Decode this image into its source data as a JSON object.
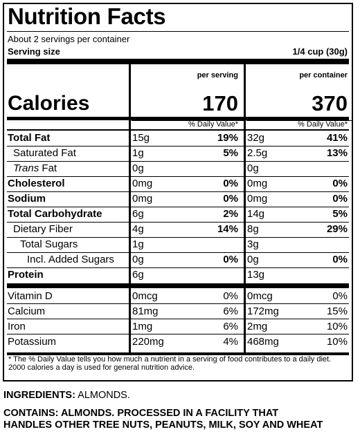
{
  "title": "Nutrition Facts",
  "servings_per_container": "About 2 servings per container",
  "serving_size_label": "Serving size",
  "serving_size_value": "1/4 cup (30g)",
  "col_per_serving": "per serving",
  "col_per_container": "per container",
  "calories_label": "Calories",
  "calories_serving": "170",
  "calories_container": "370",
  "dv_heading": "% Daily Value*",
  "nutrients": [
    {
      "name": "Total Fat",
      "bold": true,
      "amt1": "15g",
      "dv1": "19%",
      "amt2": "32g",
      "dv2": "41%"
    },
    {
      "name": "Saturated Fat",
      "bold": false,
      "amt1": "1g",
      "dv1": "5%",
      "amt2": "2.5g",
      "dv2": "13%"
    },
    {
      "name_italic": "Trans",
      "name": " Fat",
      "bold": false,
      "amt1": "0g",
      "dv1": "",
      "amt2": "0g",
      "dv2": ""
    },
    {
      "name": "Cholesterol",
      "bold": true,
      "amt1": "0mg",
      "dv1": "0%",
      "amt2": "0mg",
      "dv2": "0%"
    },
    {
      "name": "Sodium",
      "bold": true,
      "amt1": "0mg",
      "dv1": "0%",
      "amt2": "0mg",
      "dv2": "0%"
    },
    {
      "name": "Total Carbohydrate",
      "bold": true,
      "amt1": "6g",
      "dv1": "2%",
      "amt2": "14g",
      "dv2": "5%"
    },
    {
      "name": "Dietary Fiber",
      "bold": false,
      "amt1": "4g",
      "dv1": "14%",
      "amt2": "8g",
      "dv2": "29%"
    },
    {
      "name": "Total Sugars",
      "bold": false,
      "amt1": "1g",
      "dv1": "",
      "amt2": "3g",
      "dv2": ""
    },
    {
      "name": "Incl. Added Sugars",
      "bold": false,
      "amt1": "0g",
      "dv1": "0%",
      "amt2": "0g",
      "dv2": "0%"
    },
    {
      "name": "Protein",
      "bold": true,
      "amt1": "6g",
      "dv1": "",
      "amt2": "13g",
      "dv2": ""
    }
  ],
  "micronutrients": [
    {
      "name": "Vitamin D",
      "amt1": "0mcg",
      "dv1": "0%",
      "amt2": "0mcg",
      "dv2": "0%"
    },
    {
      "name": "Calcium",
      "amt1": "81mg",
      "dv1": "6%",
      "amt2": "172mg",
      "dv2": "15%"
    },
    {
      "name": "Iron",
      "amt1": "1mg",
      "dv1": "6%",
      "amt2": "2mg",
      "dv2": "10%"
    },
    {
      "name": "Potassium",
      "amt1": "220mg",
      "dv1": "4%",
      "amt2": "468mg",
      "dv2": "10%"
    }
  ],
  "footnote": "* The % Daily Value tells you how much a nutrient in a serving of food contributes to a daily diet. 2000 calories a day is used for general nutrition advice.",
  "ingredients_label": "INGREDIENTS:",
  "ingredients_value": " ALMONDS.",
  "contains_line1": "CONTAINS: ALMONDS. PROCESSED IN A FACILITY THAT",
  "contains_line2": "HANDLES OTHER TREE NUTS, PEANUTS, MILK, SOY AND WHEAT"
}
